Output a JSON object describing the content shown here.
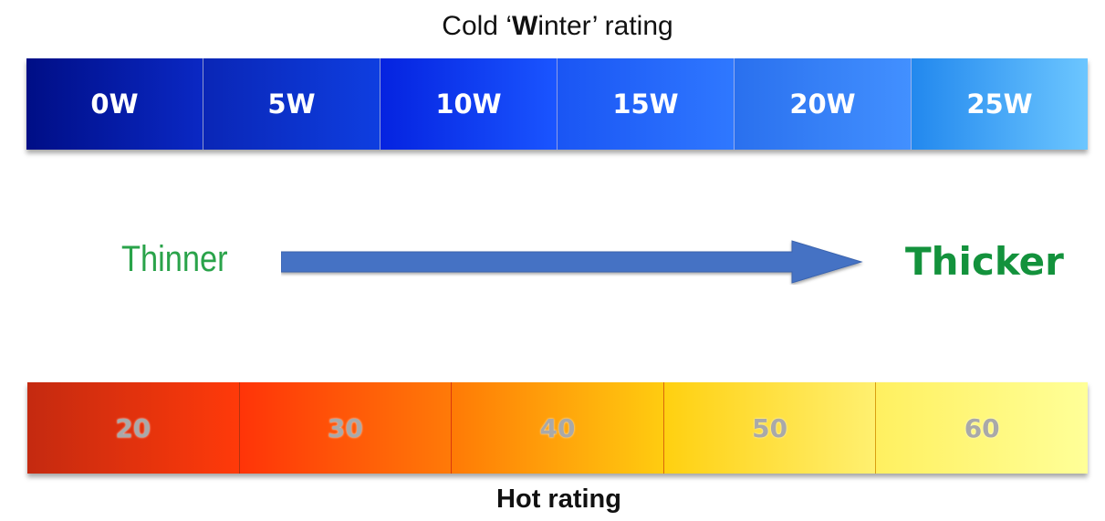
{
  "top_title": {
    "before": "Cold ‘",
    "bold": "W",
    "after": "inter’ rating"
  },
  "winter_ratings": [
    "0W",
    "5W",
    "10W",
    "15W",
    "20W",
    "25W"
  ],
  "direction": {
    "left_label": "Thinner",
    "right_label": "Thicker",
    "arrow_color": "#4472c4"
  },
  "hot_ratings": [
    "20",
    "30",
    "40",
    "50",
    "60"
  ],
  "bottom_title": "Hot rating",
  "colors": {
    "label_green": "#2aa34a",
    "winter_dark": "#000e86",
    "winter_light": "#6cc6ff",
    "hot_dark": "#c42a10",
    "hot_light": "#ffff98"
  }
}
